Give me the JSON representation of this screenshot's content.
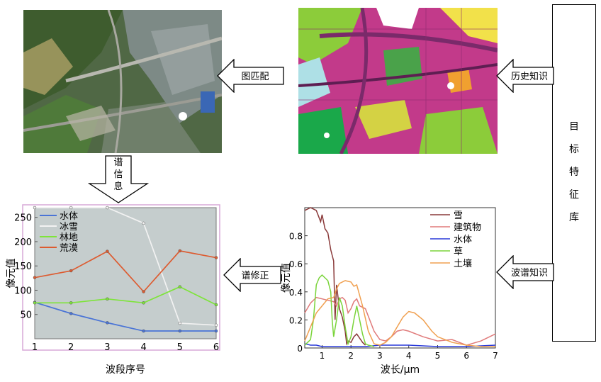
{
  "labels": {
    "image_match": "图匹配",
    "history_knowledge": "历史知识",
    "spectral_info": [
      "谱",
      "信",
      "息"
    ],
    "spectral_correction": "谱修正",
    "spectral_knowledge": "波谱知识",
    "feature_library": [
      "目",
      "标",
      "特",
      "征",
      "库"
    ]
  },
  "chart_data": [
    {
      "type": "line",
      "xlabel": "波段序号",
      "ylabel": "像元值",
      "x": [
        1,
        2,
        3,
        4,
        5,
        6
      ],
      "xticks": [
        "1",
        "2",
        "3",
        "4",
        "5",
        "6"
      ],
      "yticks": [
        "50",
        "100",
        "150",
        "200",
        "250"
      ],
      "xlim": [
        1,
        6
      ],
      "ylim": [
        0,
        270
      ],
      "background": "#c5cdcd",
      "series": [
        {
          "name": "水体",
          "color": "#4a74d6",
          "values": [
            75,
            52,
            33,
            16,
            16,
            16
          ]
        },
        {
          "name": "冰雪",
          "color": "#f2f2f2",
          "values": [
            270,
            270,
            270,
            238,
            32,
            28
          ]
        },
        {
          "name": "林地",
          "color": "#7ee43a",
          "values": [
            74,
            74,
            82,
            74,
            107,
            70
          ]
        },
        {
          "name": "荒漠",
          "color": "#dd5b30",
          "values": [
            126,
            140,
            180,
            97,
            181,
            167
          ]
        }
      ]
    },
    {
      "type": "line",
      "xlabel": "波长/μm",
      "ylabel": "像元值",
      "xticks": [
        "1",
        "2",
        "3",
        "4",
        "5",
        "6",
        "7"
      ],
      "yticks": [
        "0",
        "0.2",
        "0.4",
        "0.6",
        "0.8"
      ],
      "xlim": [
        0.4,
        7
      ],
      "ylim": [
        0,
        1.0
      ],
      "series": [
        {
          "name": "雪",
          "color": "#8a3a3a",
          "x": [
            0.4,
            0.6,
            0.8,
            0.95,
            1.0,
            1.1,
            1.2,
            1.3,
            1.4,
            1.45,
            1.5,
            1.6,
            1.7,
            1.8,
            1.85,
            1.9,
            2.0,
            2.1,
            2.2,
            2.3,
            2.4,
            2.5
          ],
          "y": [
            0.98,
            1.0,
            0.98,
            0.9,
            0.95,
            0.85,
            0.82,
            0.7,
            0.62,
            0.2,
            0.45,
            0.28,
            0.22,
            0.12,
            0.03,
            0.05,
            0.04,
            0.08,
            0.1,
            0.07,
            0.04,
            0.02
          ]
        },
        {
          "name": "建筑物",
          "color": "#e07a7a",
          "x": [
            0.4,
            0.6,
            0.8,
            1.0,
            1.2,
            1.4,
            1.5,
            1.6,
            1.7,
            1.8,
            1.9,
            2.0,
            2.1,
            2.2,
            2.3,
            2.5,
            2.8,
            3.0,
            3.2,
            3.4,
            3.6,
            3.8,
            4.0,
            4.5,
            5.0,
            5.5,
            6.0,
            6.5,
            7.0
          ],
          "y": [
            0.25,
            0.32,
            0.36,
            0.35,
            0.34,
            0.33,
            0.3,
            0.35,
            0.36,
            0.34,
            0.25,
            0.28,
            0.33,
            0.35,
            0.3,
            0.28,
            0.12,
            0.06,
            0.05,
            0.08,
            0.12,
            0.13,
            0.12,
            0.08,
            0.05,
            0.06,
            0.02,
            0.05,
            0.1
          ]
        },
        {
          "name": "水体",
          "color": "#2a3ad8",
          "x": [
            0.4,
            0.6,
            0.8,
            1.0,
            1.5,
            2.0,
            2.5,
            3.0,
            4.0,
            5.0,
            6.0,
            7.0
          ],
          "y": [
            0.03,
            0.02,
            0.02,
            0.01,
            0.01,
            0.01,
            0.01,
            0.02,
            0.02,
            0.01,
            0.01,
            0.02
          ]
        },
        {
          "name": "草",
          "color": "#7ad43a",
          "x": [
            0.4,
            0.5,
            0.6,
            0.7,
            0.8,
            0.9,
            1.0,
            1.1,
            1.2,
            1.3,
            1.35,
            1.4,
            1.5,
            1.6,
            1.7,
            1.8,
            1.9,
            2.0,
            2.1,
            2.2,
            2.3,
            2.4,
            2.5,
            2.6,
            2.8
          ],
          "y": [
            0.02,
            0.04,
            0.06,
            0.2,
            0.45,
            0.5,
            0.52,
            0.5,
            0.48,
            0.4,
            0.2,
            0.08,
            0.2,
            0.36,
            0.3,
            0.15,
            0.03,
            0.08,
            0.2,
            0.3,
            0.2,
            0.1,
            0.03,
            0.02,
            0.01
          ]
        },
        {
          "name": "土壤",
          "color": "#f0a050",
          "x": [
            0.4,
            0.6,
            0.8,
            1.0,
            1.2,
            1.4,
            1.5,
            1.6,
            1.8,
            2.0,
            2.1,
            2.2,
            2.4,
            2.6,
            2.8,
            3.0,
            3.2,
            3.4,
            3.6,
            3.8,
            4.0,
            4.2,
            4.5,
            4.8,
            5.0,
            5.5,
            6.0,
            6.5,
            7.0
          ],
          "y": [
            0.05,
            0.15,
            0.25,
            0.3,
            0.35,
            0.36,
            0.42,
            0.46,
            0.48,
            0.47,
            0.44,
            0.45,
            0.3,
            0.12,
            0.03,
            0.02,
            0.04,
            0.08,
            0.15,
            0.22,
            0.26,
            0.25,
            0.2,
            0.12,
            0.08,
            0.04,
            0.02,
            0.01,
            0.01
          ]
        }
      ]
    }
  ]
}
